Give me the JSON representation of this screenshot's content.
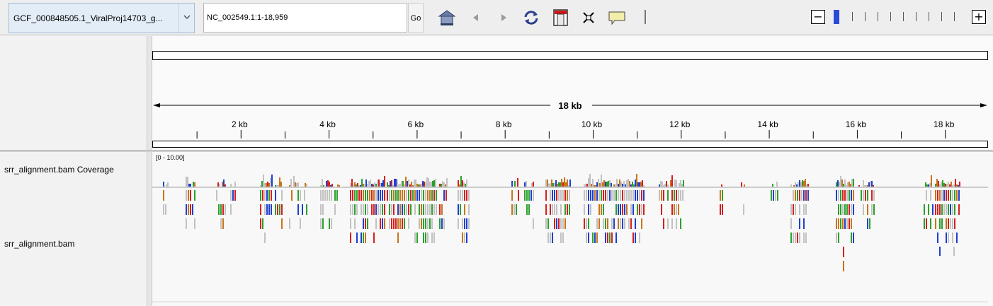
{
  "toolbar": {
    "genome": "GCF_000848505.1_ViralProj14703_g...",
    "locus": "NC_002549.1:1-18,959",
    "go_label": "Go",
    "icons": [
      "home-icon",
      "back-icon",
      "forward-icon",
      "refresh-icon",
      "region-of-interest-icon",
      "resize-icon",
      "popup-info-icon"
    ],
    "zoom_minus": "−",
    "zoom_plus": "+"
  },
  "ruler": {
    "span_label": "18 kb",
    "ticks": [
      "2 kb",
      "4 kb",
      "6 kb",
      "8 kb",
      "10 kb",
      "12 kb",
      "14 kb",
      "16 kb",
      "18 kb"
    ]
  },
  "tracks": {
    "coverage_name": "srr_alignment.bam Coverage",
    "coverage_range": "[0 - 10.00]",
    "alignment_name": "srr_alignment.bam"
  },
  "colors": {
    "read_gray": "#c2c2c2",
    "base_a": "#2ca02c",
    "base_c": "#1f3fd0",
    "base_g": "#c8751b",
    "base_t": "#d81e1e"
  }
}
